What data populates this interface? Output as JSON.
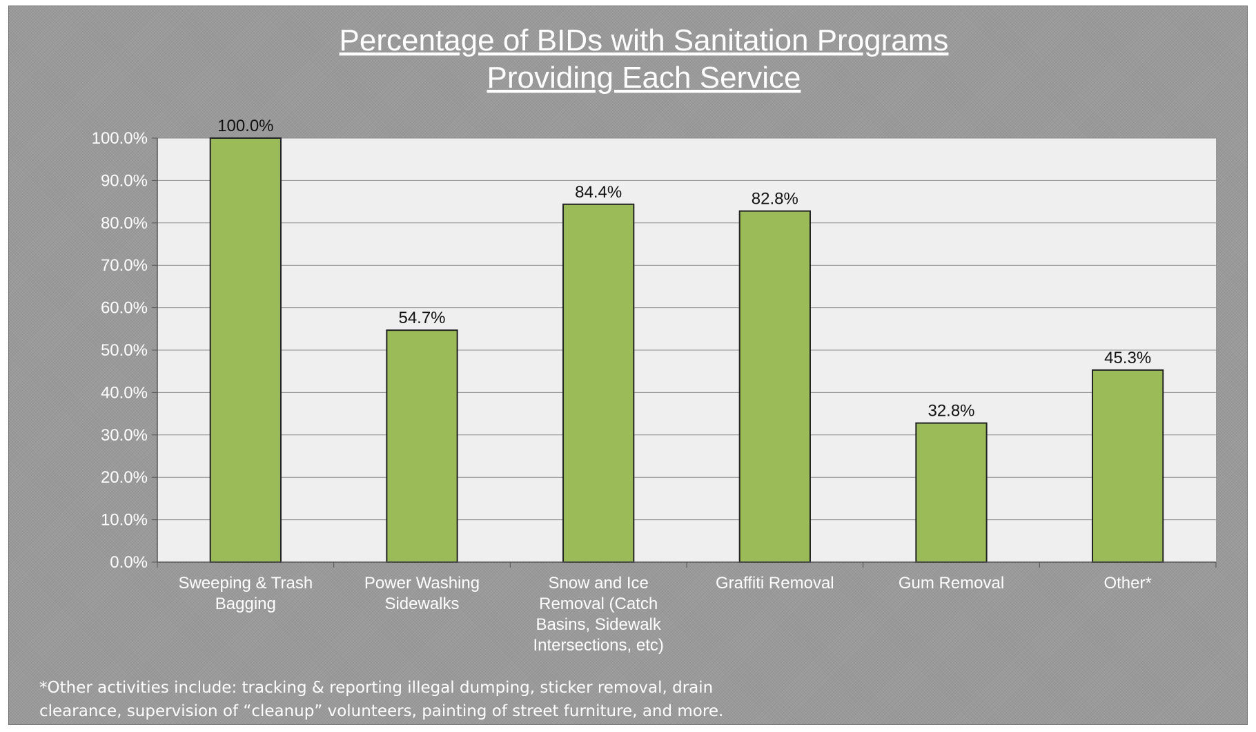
{
  "chart_data": {
    "type": "bar",
    "title_lines": [
      "Percentage of BIDs with Sanitation Programs",
      "Providing Each Service"
    ],
    "categories": [
      [
        "Sweeping & Trash",
        "Bagging"
      ],
      [
        "Power Washing",
        "Sidewalks"
      ],
      [
        "Snow and Ice",
        "Removal (Catch",
        "Basins, Sidewalk",
        "Intersections, etc)"
      ],
      [
        "Graffiti Removal"
      ],
      [
        "Gum Removal"
      ],
      [
        "Other*"
      ]
    ],
    "values": [
      100.0,
      54.7,
      84.4,
      82.8,
      32.8,
      45.3
    ],
    "data_labels": [
      "100.0%",
      "54.7%",
      "84.4%",
      "82.8%",
      "32.8%",
      "45.3%"
    ],
    "y_ticks": [
      "0.0%",
      "10.0%",
      "20.0%",
      "30.0%",
      "40.0%",
      "50.0%",
      "60.0%",
      "70.0%",
      "80.0%",
      "90.0%",
      "100.0%"
    ],
    "ylim": [
      0,
      100
    ],
    "grid": true,
    "legend": "none",
    "colors": {
      "bar_fill": "#9bbb59",
      "bar_stroke": "#222222",
      "plot_background": "#efefef",
      "gridline": "#8a8a8a"
    }
  },
  "footnote": "*Other activities include: tracking & reporting illegal dumping,  sticker removal, drain\nclearance, supervision of “cleanup” volunteers, painting of street furniture, and more."
}
